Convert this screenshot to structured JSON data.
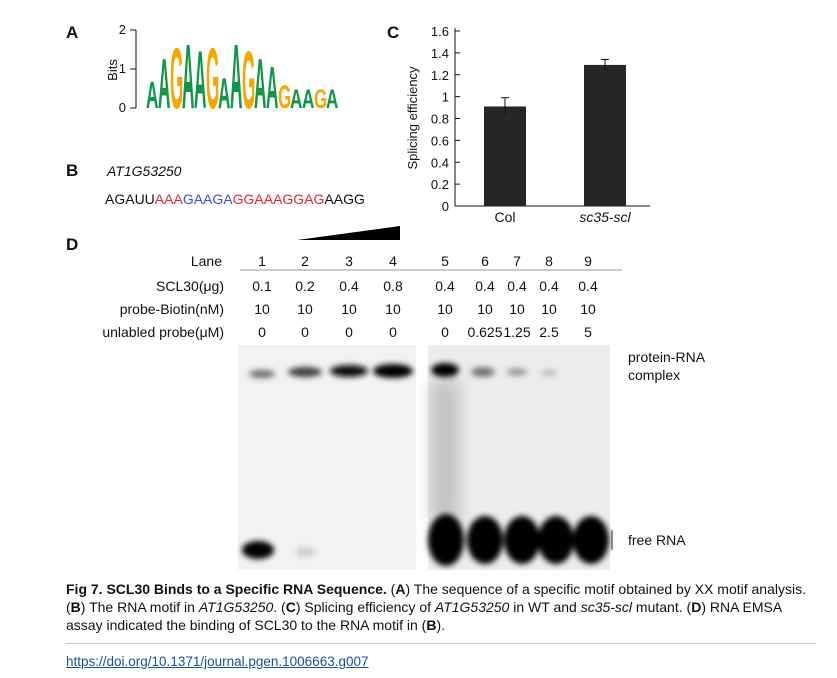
{
  "panels": {
    "a": "A",
    "b": "B",
    "c": "C",
    "d": "D"
  },
  "logo": {
    "ylabel": "Bits",
    "ylim": [
      0,
      2
    ],
    "yticks": [
      0,
      1,
      2
    ],
    "letters": [
      "A",
      "A",
      "G",
      "A",
      "A",
      "G",
      "A",
      "A",
      "G",
      "A",
      "A",
      "G",
      "A",
      "A",
      "G",
      "A"
    ],
    "heights": [
      0.7,
      1.3,
      1.6,
      1.7,
      1.5,
      1.6,
      0.8,
      1.7,
      1.5,
      1.3,
      1.1,
      0.6,
      0.5,
      0.5,
      0.5,
      0.5
    ],
    "colors": {
      "A": "#109648",
      "G": "#f7a800",
      "C": "#255c99",
      "U": "#d62839"
    }
  },
  "sequence": {
    "gene": "AT1G53250",
    "segments": [
      {
        "text": "AGAUU",
        "color": "#111111"
      },
      {
        "text": "AAA",
        "color": "#e8203a"
      },
      {
        "text": "GAAGA",
        "color": "#3a4fd0"
      },
      {
        "text": "GGAAAGGAG",
        "color": "#e8203a"
      },
      {
        "text": "AAGG",
        "color": "#111111"
      }
    ]
  },
  "chart_data": {
    "type": "bar",
    "ylabel": "Splicing efficiency",
    "categories": [
      "Col",
      "sc35-scl"
    ],
    "values": [
      0.91,
      1.29
    ],
    "errors": [
      0.08,
      0.05
    ],
    "color": "#262626",
    "ylim": [
      0,
      1.6
    ],
    "yticks": [
      0,
      0.2,
      0.4,
      0.6,
      0.8,
      1,
      1.2,
      1.4,
      1.6
    ]
  },
  "gel": {
    "lane_label": "Lane",
    "lanes": [
      "1",
      "2",
      "3",
      "4",
      "5",
      "6",
      "7",
      "8",
      "9"
    ],
    "rows": [
      {
        "label": "SCL30(μg)",
        "values": [
          "0.1",
          "0.2",
          "0.4",
          "0.8",
          "0.4",
          "0.4",
          "0.4",
          "0.4",
          "0.4"
        ]
      },
      {
        "label": "probe-Biotin(nM)",
        "values": [
          "10",
          "10",
          "10",
          "10",
          "10",
          "10",
          "10",
          "10",
          "10"
        ]
      },
      {
        "label": "unlabled probe(μM)",
        "values": [
          "0",
          "0",
          "0",
          "0",
          "0",
          "0.625",
          "1.25",
          "2.5",
          "5"
        ]
      }
    ],
    "complex_label": [
      "protein-RNA",
      "complex"
    ],
    "free_label": "free RNA"
  },
  "caption": [
    {
      "text": "Fig 7. SCL30 Binds to a Specific RNA Sequence.",
      "style": "bold"
    },
    {
      "text": " (",
      "style": "normal"
    },
    {
      "text": "A",
      "style": "bold"
    },
    {
      "text": ") The sequence of a specific motif obtained by XX motif analysis. (",
      "style": "normal"
    },
    {
      "text": "B",
      "style": "bold"
    },
    {
      "text": ") The RNA motif in ",
      "style": "normal"
    },
    {
      "text": "AT1G53250",
      "style": "italic"
    },
    {
      "text": ". (",
      "style": "normal"
    },
    {
      "text": "C",
      "style": "bold"
    },
    {
      "text": ") Splicing efficiency of ",
      "style": "normal"
    },
    {
      "text": "AT1G53250",
      "style": "italic"
    },
    {
      "text": " in WT and ",
      "style": "normal"
    },
    {
      "text": "sc35-scl",
      "style": "italic"
    },
    {
      "text": " mutant. (",
      "style": "normal"
    },
    {
      "text": "D",
      "style": "bold"
    },
    {
      "text": ") RNA EMSA assay indicated the binding of SCL30 to the RNA motif in (",
      "style": "normal"
    },
    {
      "text": "B",
      "style": "bold"
    },
    {
      "text": ").",
      "style": "normal"
    }
  ],
  "doi": "https://doi.org/10.1371/journal.pgen.1006663.g007"
}
